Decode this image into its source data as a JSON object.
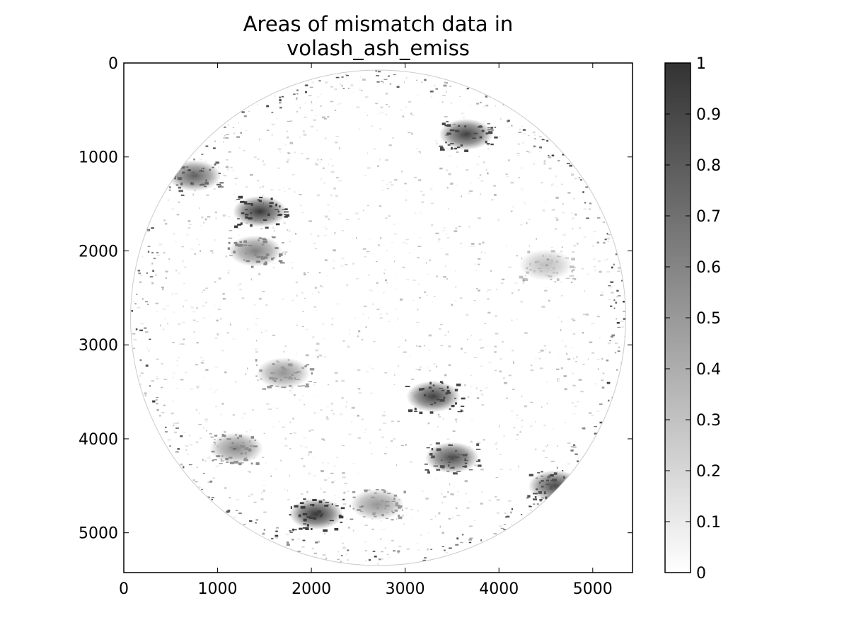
{
  "chart_data": {
    "type": "heatmap",
    "title": [
      "Areas of mismatch data in",
      "volash_ash_emiss"
    ],
    "xlabel": "",
    "ylabel": "",
    "xlim": [
      0,
      5424
    ],
    "ylim": [
      5424,
      0
    ],
    "x_ticks": [
      0,
      1000,
      2000,
      3000,
      4000,
      5000
    ],
    "x_tick_labels": [
      "0",
      "1000",
      "2000",
      "3000",
      "4000",
      "5000"
    ],
    "y_ticks": [
      0,
      1000,
      2000,
      3000,
      4000,
      5000
    ],
    "y_tick_labels": [
      "0",
      "1000",
      "2000",
      "3000",
      "4000",
      "5000"
    ],
    "colorbar": {
      "range": [
        0,
        1
      ],
      "ticks": [
        0,
        0.1,
        0.2,
        0.3,
        0.4,
        0.5,
        0.6,
        0.7,
        0.8,
        0.9,
        1
      ],
      "tick_labels": [
        "0",
        "0.1",
        "0.2",
        "0.3",
        "0.4",
        "0.5",
        "0.6",
        "0.7",
        "0.8",
        "0.9",
        "1"
      ],
      "colormap": "greys",
      "low_color": "#ffffff",
      "high_color": "#333333"
    },
    "disk": {
      "center": [
        2712,
        2712
      ],
      "radius": 2640
    },
    "grid": false,
    "high_mismatch_regions": [
      {
        "x": 1450,
        "y": 1580,
        "value": 0.95
      },
      {
        "x": 3650,
        "y": 760,
        "value": 0.9
      },
      {
        "x": 2050,
        "y": 4800,
        "value": 0.95
      },
      {
        "x": 3300,
        "y": 3550,
        "value": 0.9
      },
      {
        "x": 3500,
        "y": 4200,
        "value": 0.85
      },
      {
        "x": 750,
        "y": 1200,
        "value": 0.75
      },
      {
        "x": 4600,
        "y": 4500,
        "value": 0.85
      },
      {
        "x": 1400,
        "y": 2000,
        "value": 0.6
      },
      {
        "x": 1700,
        "y": 3300,
        "value": 0.5
      },
      {
        "x": 4500,
        "y": 2150,
        "value": 0.3
      },
      {
        "x": 2700,
        "y": 4700,
        "value": 0.5
      },
      {
        "x": 1200,
        "y": 4100,
        "value": 0.55
      }
    ]
  }
}
